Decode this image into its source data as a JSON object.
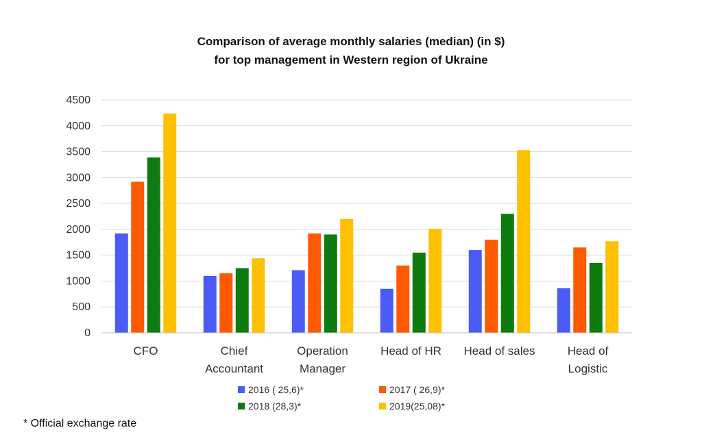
{
  "chart_data": {
    "type": "bar",
    "title_lines": [
      "Comparison of average monthly salaries (median) (in $)",
      "for top management in Western region of Ukraine"
    ],
    "categories": [
      [
        "CFO"
      ],
      [
        "Chief",
        "Accountant"
      ],
      [
        "Operation",
        "Manager"
      ],
      [
        "Head of HR"
      ],
      [
        "Head of sales"
      ],
      [
        "Head of",
        "Logistic"
      ]
    ],
    "series": [
      {
        "name": "2016 ( 25,6)*",
        "color": "#4a5cf5",
        "values": [
          1920,
          1100,
          1210,
          850,
          1600,
          860
        ]
      },
      {
        "name": "2017 ( 26,9)*",
        "color": "#ff5a00",
        "values": [
          2920,
          1150,
          1920,
          1300,
          1800,
          1650
        ]
      },
      {
        "name": "2018 (28,3)*",
        "color": "#0f7a0f",
        "values": [
          3390,
          1250,
          1900,
          1550,
          2300,
          1350
        ]
      },
      {
        "name": "2019(25,08)*",
        "color": "#ffc000",
        "values": [
          4240,
          1440,
          2200,
          2010,
          3530,
          1770
        ]
      }
    ],
    "yticks": [
      0,
      500,
      1000,
      1500,
      2000,
      2500,
      3000,
      3500,
      4000,
      4500
    ],
    "ylim": [
      0,
      4500
    ],
    "grid": true,
    "legend_position": "bottom"
  },
  "footnote": "* Official exchange rate"
}
